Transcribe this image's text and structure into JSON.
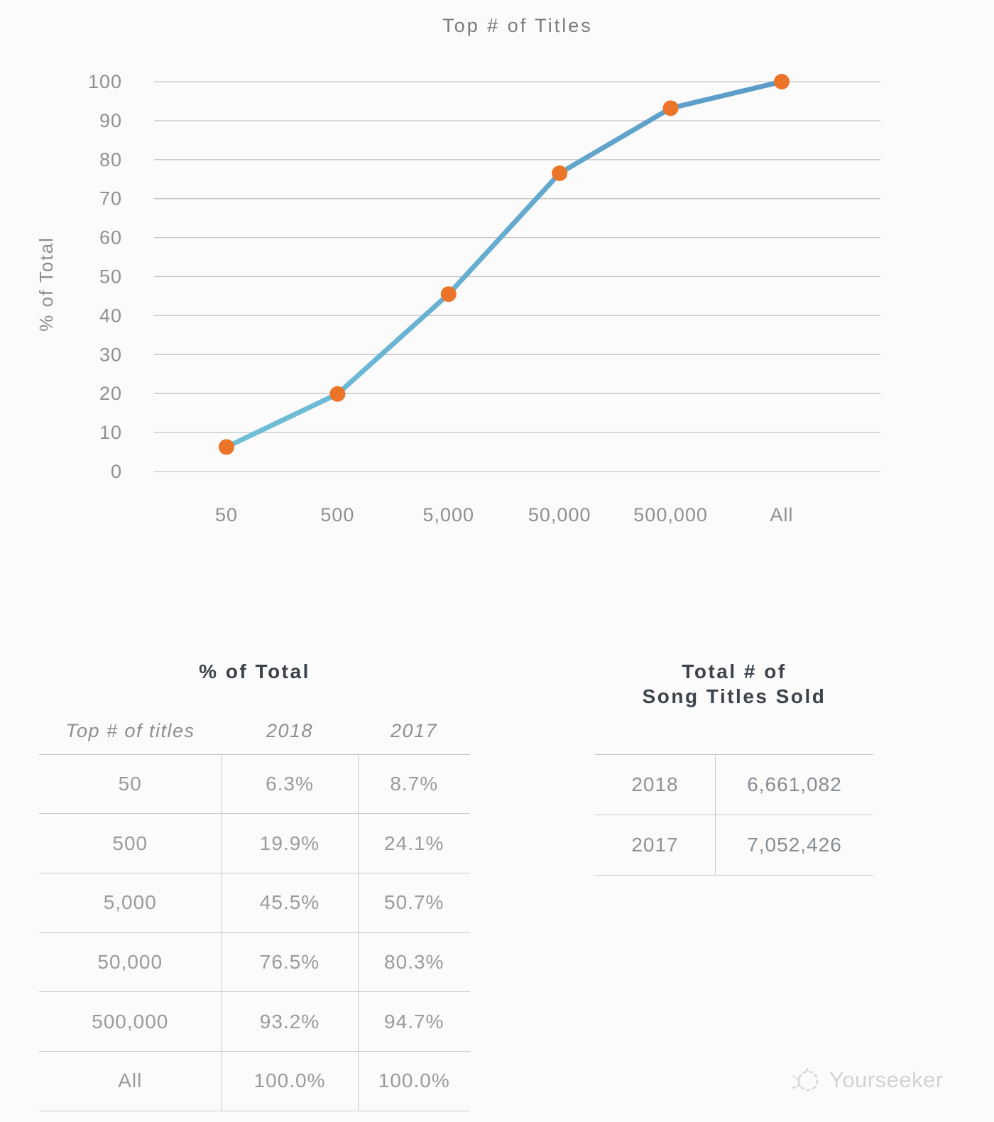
{
  "page": {
    "background": "#fbfbfb"
  },
  "chart_data": {
    "type": "line",
    "title": "Top # of Titles",
    "xlabel": "",
    "ylabel": "% of Total",
    "categories": [
      "50",
      "500",
      "5,000",
      "50,000",
      "500,000",
      "All"
    ],
    "series": [
      {
        "name": "2018",
        "values": [
          6.3,
          19.9,
          45.5,
          76.5,
          93.2,
          100.0
        ]
      }
    ],
    "ylim": [
      0,
      100
    ],
    "ytick_step": 10,
    "grid": true,
    "legend_position": "none",
    "line_color_start": "#6fc0d8",
    "line_color_end": "#5b9ac8",
    "marker_color": "#ec7428"
  },
  "pct_table": {
    "title": "% of Total",
    "columns": [
      "Top # of titles",
      "2018",
      "2017"
    ],
    "rows": [
      [
        "50",
        "6.3%",
        "8.7%"
      ],
      [
        "500",
        "19.9%",
        "24.1%"
      ],
      [
        "5,000",
        "45.5%",
        "50.7%"
      ],
      [
        "50,000",
        "76.5%",
        "80.3%"
      ],
      [
        "500,000",
        "93.2%",
        "94.7%"
      ],
      [
        "All",
        "100.0%",
        "100.0%"
      ]
    ]
  },
  "totals_table": {
    "title_line1": "Total # of",
    "title_line2": "Song Titles Sold",
    "rows": [
      [
        "2018",
        "6,661,082"
      ],
      [
        "2017",
        "7,052,426"
      ]
    ]
  },
  "watermark": {
    "text": "Yourseeker"
  }
}
